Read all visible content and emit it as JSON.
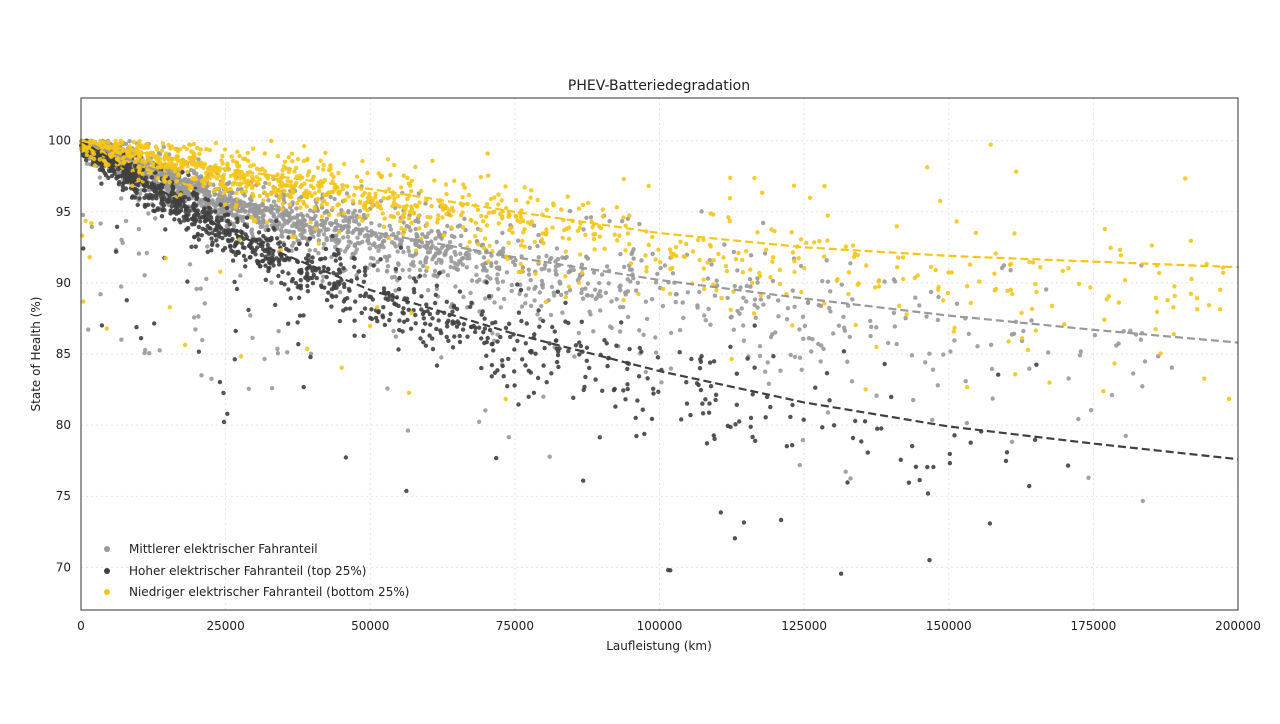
{
  "chart_data": {
    "type": "scatter",
    "title": "PHEV-Batteriedegradation",
    "xlabel": "Laufleistung (km)",
    "ylabel": "State of Health (%)",
    "xlim": [
      0,
      200000
    ],
    "ylim": [
      67,
      103
    ],
    "xticks": [
      0,
      25000,
      50000,
      75000,
      100000,
      125000,
      150000,
      175000,
      200000
    ],
    "yticks": [
      70,
      75,
      80,
      85,
      90,
      95,
      100
    ],
    "grid": true,
    "legend_position": "bottom-left",
    "series": [
      {
        "name": "Mittlerer elektrischer Fahranteil",
        "color": "#999999",
        "marker": "circle",
        "count": 2000,
        "trend_values": [
          {
            "x": 0,
            "y": 100
          },
          {
            "x": 25000,
            "y": 96.0
          },
          {
            "x": 50000,
            "y": 93.6
          },
          {
            "x": 75000,
            "y": 91.8
          },
          {
            "x": 100000,
            "y": 90.2
          },
          {
            "x": 125000,
            "y": 88.9
          },
          {
            "x": 150000,
            "y": 87.7
          },
          {
            "x": 175000,
            "y": 86.7
          },
          {
            "x": 200000,
            "y": 85.8
          }
        ]
      },
      {
        "name": "Hoher elektrischer Fahranteil (top 25%)",
        "color": "#404040",
        "marker": "circle",
        "count": 1200,
        "trend_values": [
          {
            "x": 0,
            "y": 100
          },
          {
            "x": 25000,
            "y": 93.7
          },
          {
            "x": 50000,
            "y": 89.5
          },
          {
            "x": 75000,
            "y": 86.4
          },
          {
            "x": 100000,
            "y": 83.8
          },
          {
            "x": 125000,
            "y": 81.6
          },
          {
            "x": 150000,
            "y": 79.9
          },
          {
            "x": 175000,
            "y": 78.7
          },
          {
            "x": 200000,
            "y": 77.6
          }
        ]
      },
      {
        "name": "Niedriger elektrischer Fahranteil (bottom 25%)",
        "color": "#f5c518",
        "marker": "circle",
        "count": 1100,
        "trend_values": [
          {
            "x": 0,
            "y": 100
          },
          {
            "x": 25000,
            "y": 98.0
          },
          {
            "x": 50000,
            "y": 96.6
          },
          {
            "x": 75000,
            "y": 95.0
          },
          {
            "x": 100000,
            "y": 93.5
          },
          {
            "x": 125000,
            "y": 92.5
          },
          {
            "x": 150000,
            "y": 91.9
          },
          {
            "x": 175000,
            "y": 91.5
          },
          {
            "x": 200000,
            "y": 91.1
          }
        ]
      }
    ]
  }
}
